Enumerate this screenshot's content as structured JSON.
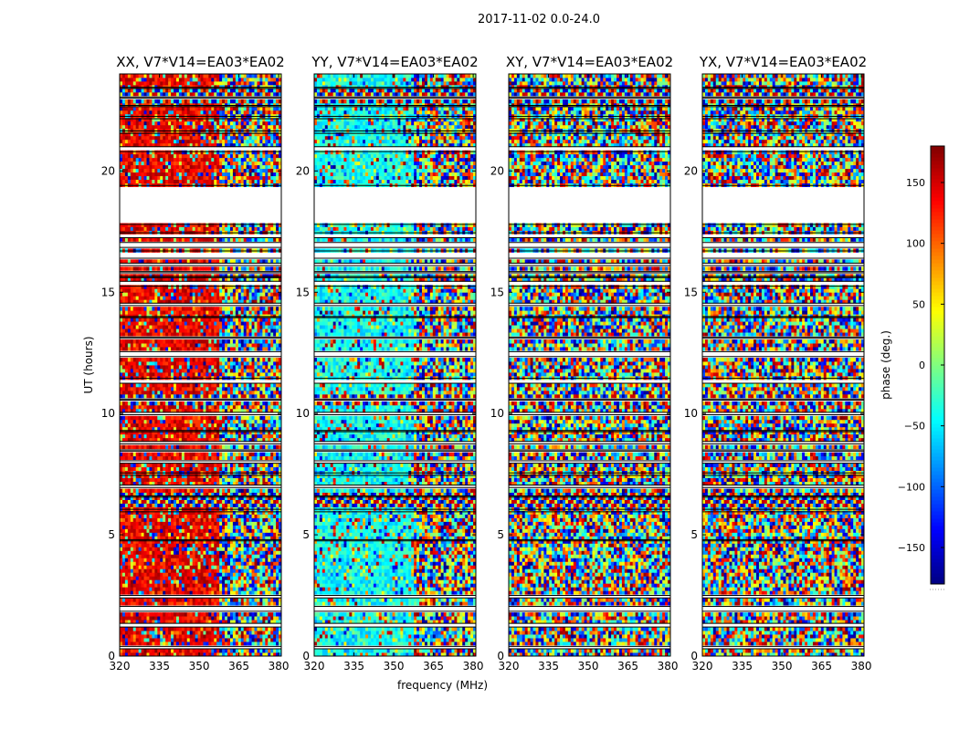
{
  "figure": {
    "suptitle": "2017-11-02 0.0-24.0"
  },
  "chart_data": [
    {
      "type": "heatmap",
      "title": "XX, V7*V14=EA03*EA02",
      "xlabel": "",
      "ylabel": "UT (hours)",
      "xlim": [
        320,
        381
      ],
      "ylim": [
        0,
        24
      ],
      "xticks": [
        "320",
        "335",
        "350",
        "365",
        "380"
      ],
      "yticks": [
        "0",
        "5",
        "10",
        "15",
        "20"
      ],
      "value_label": "phase (deg.)",
      "dominant_phase_low_freq_deg": 140,
      "coherent_until_mhz": 358
    },
    {
      "type": "heatmap",
      "title": "YY, V7*V14=EA03*EA02",
      "xlabel": "frequency (MHz)",
      "ylabel": "",
      "xlim": [
        320,
        381
      ],
      "ylim": [
        0,
        24
      ],
      "xticks": [
        "320",
        "335",
        "350",
        "365",
        "380"
      ],
      "yticks": [
        "0",
        "5",
        "10",
        "15",
        "20"
      ],
      "value_label": "phase (deg.)",
      "dominant_phase_low_freq_deg": -40,
      "coherent_until_mhz": 358
    },
    {
      "type": "heatmap",
      "title": "XY, V7*V14=EA03*EA02",
      "xlabel": "",
      "ylabel": "",
      "xlim": [
        320,
        381
      ],
      "ylim": [
        0,
        24
      ],
      "xticks": [
        "320",
        "335",
        "350",
        "365",
        "380"
      ],
      "yticks": [
        "0",
        "5",
        "10",
        "15",
        "20"
      ],
      "value_label": "phase (deg.)",
      "dominant_phase_low_freq_deg": null,
      "coherent_until_mhz": null
    },
    {
      "type": "heatmap",
      "title": "YX, V7*V14=EA03*EA02",
      "xlabel": "",
      "ylabel": "",
      "xlim": [
        320,
        381
      ],
      "ylim": [
        0,
        24
      ],
      "xticks": [
        "320",
        "335",
        "350",
        "365",
        "380"
      ],
      "yticks": [
        "0",
        "5",
        "10",
        "15",
        "20"
      ],
      "value_label": "phase (deg.)",
      "dominant_phase_low_freq_deg": null,
      "coherent_until_mhz": null
    }
  ],
  "colorbar": {
    "label": "phase (deg.)",
    "range": [
      -180,
      180
    ],
    "ticks": [
      "150",
      "100",
      "50",
      "0",
      "−50",
      "−100",
      "−150"
    ],
    "tick_values": [
      150,
      100,
      50,
      0,
      -50,
      -100,
      -150
    ],
    "colormap": "jet"
  },
  "flagged_ut_ranges_hours": [
    [
      0.3,
      0.4
    ],
    [
      1.2,
      1.35
    ],
    [
      1.85,
      2.05
    ],
    [
      2.4,
      2.5
    ],
    [
      4.75,
      4.8
    ],
    [
      5.95,
      6.05
    ],
    [
      6.55,
      6.6
    ],
    [
      6.95,
      7.05
    ],
    [
      7.45,
      7.55
    ],
    [
      7.95,
      8.05
    ],
    [
      8.45,
      8.5
    ],
    [
      8.75,
      8.85
    ],
    [
      9.25,
      9.3
    ],
    [
      9.95,
      10.05
    ],
    [
      10.55,
      10.6
    ],
    [
      11.25,
      11.45
    ],
    [
      12.35,
      12.55
    ],
    [
      13.1,
      13.15
    ],
    [
      13.95,
      14.0
    ],
    [
      14.45,
      14.55
    ],
    [
      15.25,
      15.45
    ],
    [
      15.6,
      15.65
    ],
    [
      15.8,
      15.85
    ],
    [
      16.1,
      16.2
    ],
    [
      16.4,
      16.7
    ],
    [
      16.85,
      17.05
    ],
    [
      17.25,
      17.45
    ],
    [
      17.8,
      19.4
    ],
    [
      20.8,
      21.0
    ],
    [
      21.55,
      21.65
    ],
    [
      22.15,
      22.25
    ],
    [
      22.65,
      22.7
    ],
    [
      23.0,
      23.05
    ],
    [
      23.4,
      23.45
    ]
  ],
  "strong_rfi_ut_ranges_hours": [
    [
      10.35,
      10.8
    ],
    [
      6.15,
      6.75
    ],
    [
      22.8,
      23.4
    ]
  ],
  "colors": {
    "axes": "#000000",
    "background": "#ffffff"
  }
}
